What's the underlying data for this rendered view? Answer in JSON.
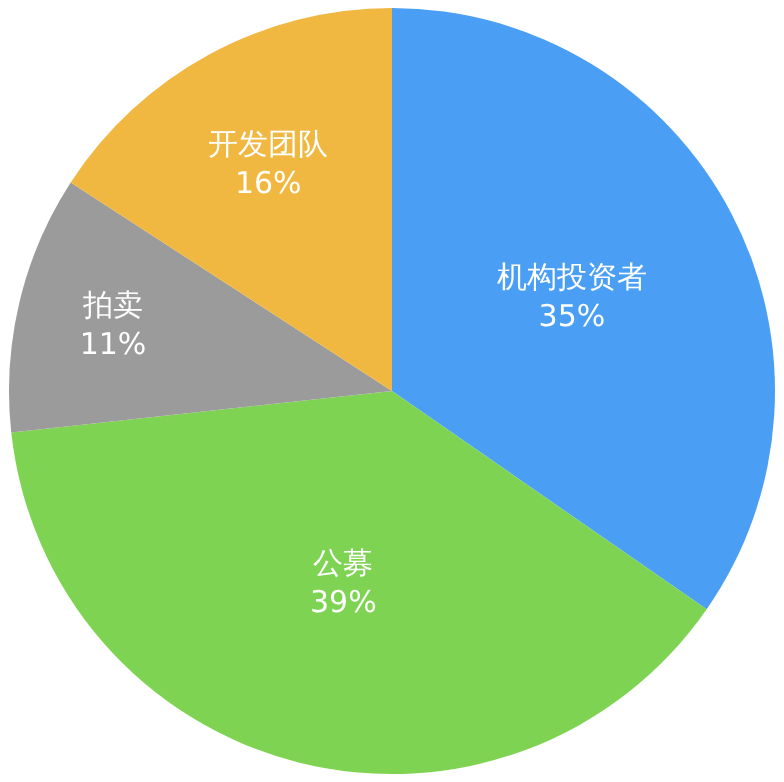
{
  "chart_data": {
    "type": "pie",
    "categories": [
      "机构投资者",
      "公募",
      "拍卖",
      "开发团队"
    ],
    "values": [
      35,
      39,
      11,
      16
    ],
    "value_labels": [
      "35%",
      "39%",
      "11%",
      "16%"
    ],
    "colors": [
      "#4a9ff5",
      "#7ed352",
      "#9b9b9b",
      "#f0b840"
    ],
    "legend": false
  }
}
